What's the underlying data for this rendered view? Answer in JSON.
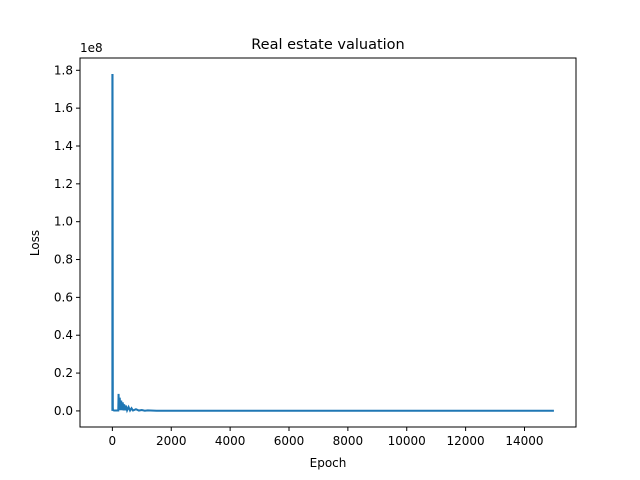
{
  "chart_data": {
    "type": "line",
    "title": "Real estate valuation",
    "xlabel": "Epoch",
    "ylabel": "Loss",
    "y_offset_label": "1e8",
    "xlim": [
      -1100,
      15750
    ],
    "ylim": [
      -0.085,
      1.865
    ],
    "y_scale_factor": 100000000,
    "xticks": [
      0,
      2000,
      4000,
      6000,
      8000,
      10000,
      12000,
      14000
    ],
    "xtick_labels": [
      "0",
      "2000",
      "4000",
      "6000",
      "8000",
      "10000",
      "12000",
      "14000"
    ],
    "yticks": [
      0.0,
      0.2,
      0.4,
      0.6,
      0.8,
      1.0,
      1.2,
      1.4,
      1.6,
      1.8
    ],
    "ytick_labels": [
      "0.0",
      "0.2",
      "0.4",
      "0.6",
      "0.8",
      "1.0",
      "1.2",
      "1.4",
      "1.6",
      "1.8"
    ],
    "grid": false,
    "legend": "none",
    "color": "#1f77b4",
    "series": [
      {
        "x": [
          0,
          0,
          5,
          10,
          15,
          20,
          40,
          60,
          80,
          100,
          120,
          140,
          160,
          180,
          200,
          210,
          230,
          250,
          270,
          300,
          320,
          350,
          380,
          400,
          430,
          460,
          500,
          550,
          600,
          650,
          700,
          800,
          900,
          1000,
          1100,
          1200,
          1500,
          2000,
          3000,
          5000,
          8000,
          11000,
          15000
        ],
        "y": [
          0.0,
          1.775,
          1.775,
          0.9,
          0.02,
          0.005,
          0.003,
          0.002,
          0.002,
          0.002,
          0.002,
          0.002,
          0.002,
          0.002,
          0.002,
          0.09,
          0.005,
          0.07,
          0.004,
          0.055,
          0.004,
          0.045,
          0.003,
          0.035,
          0.003,
          0.028,
          0.003,
          0.02,
          0.002,
          0.014,
          0.002,
          0.009,
          0.002,
          0.005,
          0.001,
          0.003,
          0.001,
          0.001,
          0.001,
          0.001,
          0.001,
          0.001,
          0.001
        ]
      }
    ]
  }
}
